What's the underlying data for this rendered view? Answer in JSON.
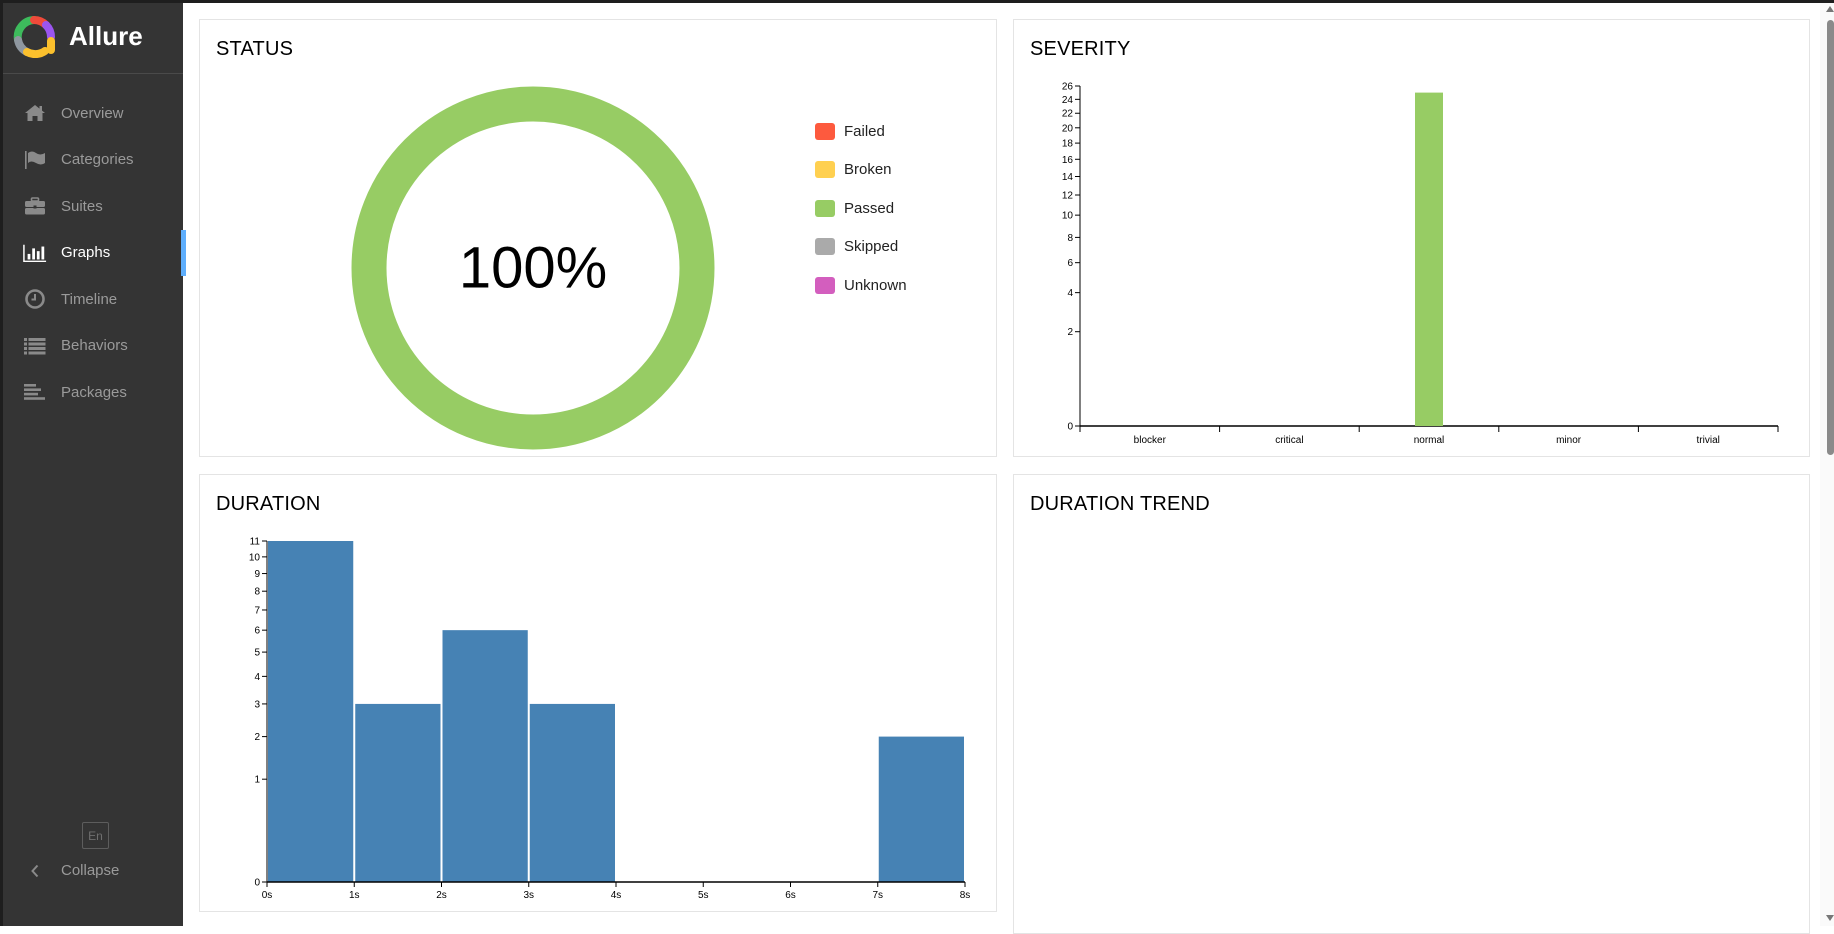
{
  "app": {
    "name": "Allure",
    "language_button": "En",
    "collapse_label": "Collapse"
  },
  "sidebar": {
    "items": [
      {
        "label": "Overview",
        "icon": "home-icon",
        "active": false
      },
      {
        "label": "Categories",
        "icon": "flag-icon",
        "active": false
      },
      {
        "label": "Suites",
        "icon": "briefcase-icon",
        "active": false
      },
      {
        "label": "Graphs",
        "icon": "bar-chart-icon",
        "active": true
      },
      {
        "label": "Timeline",
        "icon": "clock-icon",
        "active": false
      },
      {
        "label": "Behaviors",
        "icon": "list-icon",
        "active": false
      },
      {
        "label": "Packages",
        "icon": "align-left-icon",
        "active": false
      }
    ]
  },
  "colors": {
    "failed": "#fd5a3e",
    "broken": "#ffd050",
    "passed": "#97cc64",
    "skipped": "#aaaaaa",
    "unknown": "#d35ebe",
    "duration_bar": "#4682b4",
    "active_indicator": "#5eaefc"
  },
  "panels": {
    "status": {
      "title": "STATUS",
      "center_label": "100%"
    },
    "severity": {
      "title": "SEVERITY"
    },
    "duration": {
      "title": "DURATION"
    },
    "duration_trend": {
      "title": "DURATION TREND"
    }
  },
  "chart_data": [
    {
      "type": "pie",
      "title": "STATUS",
      "variant": "donut",
      "center_label": "100%",
      "categories": [
        "Failed",
        "Broken",
        "Passed",
        "Skipped",
        "Unknown"
      ],
      "values": [
        0,
        0,
        100,
        0,
        0
      ],
      "unit": "%",
      "legend_position": "right"
    },
    {
      "type": "bar",
      "title": "SEVERITY",
      "categories": [
        "blocker",
        "critical",
        "normal",
        "minor",
        "trivial"
      ],
      "values": [
        0,
        0,
        25,
        0,
        0
      ],
      "xlabel": "",
      "ylabel": "",
      "y_scale": "sqrt",
      "ylim": [
        0,
        26
      ],
      "y_ticks": [
        0,
        2,
        4,
        6,
        8,
        10,
        12,
        14,
        16,
        18,
        20,
        22,
        24,
        26
      ],
      "grid": false
    },
    {
      "type": "bar",
      "title": "DURATION",
      "variant": "histogram",
      "categories": [
        "0s-1s",
        "1s-2s",
        "2s-3s",
        "3s-4s",
        "4s-5s",
        "5s-6s",
        "6s-7s",
        "7s-8s"
      ],
      "values": [
        11,
        3,
        6,
        3,
        0,
        0,
        0,
        2
      ],
      "x_ticks": [
        "0s",
        "1s",
        "2s",
        "3s",
        "4s",
        "5s",
        "6s",
        "7s",
        "8s"
      ],
      "y_scale": "sqrt",
      "ylim": [
        0,
        11
      ],
      "y_ticks": [
        0,
        1,
        2,
        3,
        4,
        5,
        6,
        7,
        8,
        9,
        10,
        11
      ],
      "grid": false
    },
    {
      "type": "line",
      "title": "DURATION TREND",
      "series": []
    }
  ]
}
